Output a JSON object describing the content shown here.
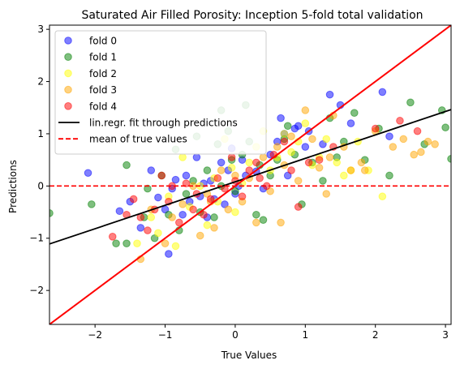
{
  "chart_data": {
    "type": "scatter",
    "title": "Saturated Air Filled Porosity: Inception 5-fold total validation",
    "xlabel": "True Values",
    "ylabel": "Predictions",
    "xlim": [
      -2.65,
      3.08
    ],
    "ylim": [
      -2.65,
      3.08
    ],
    "xticks": [
      -2,
      -1,
      0,
      1,
      2,
      3
    ],
    "yticks": [
      -2,
      -1,
      0,
      1,
      2,
      3
    ],
    "tick_labels": [
      "−2",
      "−1",
      "0",
      "1",
      "2",
      "3"
    ],
    "grid": false,
    "legend_placement": "top-left",
    "series": [
      {
        "name": "fold 0",
        "color": "#0000ff",
        "points": [
          [
            -2.1,
            0.25
          ],
          [
            -1.65,
            -0.48
          ],
          [
            -1.5,
            -0.3
          ],
          [
            -1.35,
            -0.8
          ],
          [
            -1.2,
            0.3
          ],
          [
            -1.1,
            -0.22
          ],
          [
            -1.0,
            -0.45
          ],
          [
            -0.95,
            -1.3
          ],
          [
            -0.9,
            -0.05
          ],
          [
            -0.85,
            0.12
          ],
          [
            -0.75,
            -0.55
          ],
          [
            -0.7,
            0.2
          ],
          [
            -0.65,
            -0.3
          ],
          [
            -0.55,
            0.55
          ],
          [
            -0.5,
            -0.2
          ],
          [
            -0.45,
            0.05
          ],
          [
            -0.4,
            -0.6
          ],
          [
            -0.35,
            0.1
          ],
          [
            -0.3,
            -0.25
          ],
          [
            -0.2,
            0.45
          ],
          [
            -0.15,
            -0.35
          ],
          [
            -0.1,
            0.3
          ],
          [
            -0.05,
            0.72
          ],
          [
            0.0,
            -0.15
          ],
          [
            0.05,
            0.0
          ],
          [
            0.1,
            0.5
          ],
          [
            0.15,
            0.2
          ],
          [
            0.3,
            0.28
          ],
          [
            0.4,
            -0.05
          ],
          [
            0.5,
            0.6
          ],
          [
            0.6,
            0.85
          ],
          [
            0.65,
            1.3
          ],
          [
            0.7,
            1.0
          ],
          [
            0.75,
            0.2
          ],
          [
            0.85,
            1.1
          ],
          [
            0.9,
            1.15
          ],
          [
            1.0,
            0.75
          ],
          [
            1.05,
            1.05
          ],
          [
            1.25,
            0.8
          ],
          [
            1.35,
            1.75
          ],
          [
            1.5,
            1.55
          ],
          [
            1.65,
            1.2
          ],
          [
            2.1,
            1.8
          ],
          [
            2.2,
            0.95
          ]
        ]
      },
      {
        "name": "fold 1",
        "color": "#008000",
        "points": [
          [
            -2.65,
            -0.52
          ],
          [
            -2.05,
            -0.35
          ],
          [
            -1.7,
            -1.1
          ],
          [
            -1.55,
            0.4
          ],
          [
            -1.55,
            -1.1
          ],
          [
            -1.25,
            -0.05
          ],
          [
            -1.15,
            -1.0
          ],
          [
            -1.05,
            0.2
          ],
          [
            -0.95,
            -0.55
          ],
          [
            -0.85,
            0.7
          ],
          [
            -0.8,
            -0.85
          ],
          [
            -0.7,
            -0.15
          ],
          [
            -0.6,
            0.1
          ],
          [
            -0.55,
            0.95
          ],
          [
            -0.5,
            -0.5
          ],
          [
            -0.4,
            0.3
          ],
          [
            -0.3,
            -0.6
          ],
          [
            -0.25,
            0.8
          ],
          [
            -0.2,
            0.0
          ],
          [
            -0.1,
            1.05
          ],
          [
            -0.05,
            0.5
          ],
          [
            0.0,
            -0.1
          ],
          [
            0.1,
            0.6
          ],
          [
            0.15,
            1.55
          ],
          [
            0.2,
            0.85
          ],
          [
            0.3,
            -0.55
          ],
          [
            0.4,
            -0.65
          ],
          [
            0.5,
            0.2
          ],
          [
            0.6,
            0.5
          ],
          [
            0.7,
            0.9
          ],
          [
            0.75,
            1.15
          ],
          [
            0.85,
            0.6
          ],
          [
            0.95,
            -0.35
          ],
          [
            1.1,
            0.45
          ],
          [
            1.25,
            0.1
          ],
          [
            1.35,
            1.3
          ],
          [
            1.45,
            0.55
          ],
          [
            1.55,
            0.85
          ],
          [
            1.7,
            1.4
          ],
          [
            1.85,
            0.5
          ],
          [
            2.05,
            1.1
          ],
          [
            2.2,
            0.2
          ],
          [
            2.5,
            1.6
          ],
          [
            2.7,
            0.8
          ],
          [
            2.95,
            1.45
          ],
          [
            3.0,
            1.12
          ],
          [
            3.08,
            0.52
          ],
          [
            -0.2,
            1.45
          ],
          [
            0.35,
            0.4
          ],
          [
            -1.3,
            -0.6
          ]
        ]
      },
      {
        "name": "fold 2",
        "color": "#ffff00",
        "points": [
          [
            -1.4,
            -1.1
          ],
          [
            -1.2,
            -0.6
          ],
          [
            -1.1,
            -0.9
          ],
          [
            -0.95,
            -0.2
          ],
          [
            -0.85,
            -1.15
          ],
          [
            -0.75,
            0.55
          ],
          [
            -0.65,
            -0.4
          ],
          [
            -0.5,
            0.0
          ],
          [
            -0.4,
            -0.75
          ],
          [
            -0.3,
            0.15
          ],
          [
            -0.25,
            -0.3
          ],
          [
            -0.15,
            0.9
          ],
          [
            -0.05,
            0.35
          ],
          [
            0.0,
            -0.5
          ],
          [
            0.1,
            0.05
          ],
          [
            0.2,
            0.45
          ],
          [
            0.3,
            0.75
          ],
          [
            0.4,
            1.05
          ],
          [
            0.5,
            0.3
          ],
          [
            0.6,
            0.55
          ],
          [
            0.7,
            1.0
          ],
          [
            0.8,
            0.65
          ],
          [
            0.9,
            0.85
          ],
          [
            1.0,
            1.2
          ],
          [
            1.1,
            0.4
          ],
          [
            1.2,
            0.55
          ],
          [
            1.3,
            0.9
          ],
          [
            1.45,
            0.45
          ],
          [
            1.55,
            0.2
          ],
          [
            1.65,
            0.3
          ],
          [
            1.75,
            0.85
          ],
          [
            1.9,
            0.3
          ],
          [
            2.1,
            -0.2
          ]
        ]
      },
      {
        "name": "fold 3",
        "color": "#ffa500",
        "points": [
          [
            -1.35,
            -1.4
          ],
          [
            -1.2,
            -0.45
          ],
          [
            -1.0,
            -1.1
          ],
          [
            -0.9,
            -0.6
          ],
          [
            -0.75,
            -0.35
          ],
          [
            -0.6,
            0.0
          ],
          [
            -0.5,
            -0.95
          ],
          [
            -0.4,
            -0.15
          ],
          [
            -0.3,
            -0.8
          ],
          [
            -0.2,
            0.3
          ],
          [
            -0.1,
            -0.45
          ],
          [
            0.0,
            0.2
          ],
          [
            0.1,
            -0.3
          ],
          [
            0.2,
            0.15
          ],
          [
            0.3,
            -0.7
          ],
          [
            0.4,
            0.55
          ],
          [
            0.5,
            -0.1
          ],
          [
            0.6,
            0.75
          ],
          [
            0.65,
            -0.7
          ],
          [
            0.7,
            0.4
          ],
          [
            0.8,
            0.95
          ],
          [
            0.9,
            0.1
          ],
          [
            1.0,
            1.45
          ],
          [
            1.1,
            0.9
          ],
          [
            1.2,
            0.35
          ],
          [
            1.3,
            -0.15
          ],
          [
            1.35,
            0.55
          ],
          [
            1.4,
            1.35
          ],
          [
            1.55,
            0.75
          ],
          [
            1.65,
            0.3
          ],
          [
            1.8,
            0.45
          ],
          [
            1.85,
            0.3
          ],
          [
            2.0,
            1.05
          ],
          [
            2.25,
            0.75
          ],
          [
            2.4,
            0.9
          ],
          [
            2.55,
            0.6
          ],
          [
            2.65,
            0.65
          ],
          [
            2.75,
            0.85
          ],
          [
            2.85,
            0.8
          ],
          [
            -0.35,
            -0.3
          ]
        ]
      },
      {
        "name": "fold 4",
        "color": "#ff0000",
        "points": [
          [
            -1.75,
            -0.97
          ],
          [
            -1.55,
            -0.55
          ],
          [
            -1.45,
            -0.25
          ],
          [
            -1.35,
            -0.6
          ],
          [
            -1.25,
            -0.85
          ],
          [
            -1.15,
            -0.45
          ],
          [
            -1.05,
            0.2
          ],
          [
            -0.95,
            -0.3
          ],
          [
            -0.9,
            0.0
          ],
          [
            -0.8,
            -0.7
          ],
          [
            -0.7,
            0.05
          ],
          [
            -0.6,
            -0.45
          ],
          [
            -0.55,
            -0.15
          ],
          [
            -0.45,
            -0.55
          ],
          [
            -0.35,
            -0.25
          ],
          [
            -0.25,
            0.15
          ],
          [
            -0.15,
            -0.05
          ],
          [
            -0.05,
            0.55
          ],
          [
            0.0,
            0.1
          ],
          [
            0.1,
            -0.2
          ],
          [
            0.2,
            0.3
          ],
          [
            0.3,
            0.45
          ],
          [
            0.35,
            0.15
          ],
          [
            0.45,
            0.0
          ],
          [
            0.55,
            0.6
          ],
          [
            0.7,
            0.85
          ],
          [
            0.8,
            0.3
          ],
          [
            0.9,
            -0.4
          ],
          [
            1.05,
            0.45
          ],
          [
            1.2,
            0.5
          ],
          [
            1.4,
            0.75
          ],
          [
            2.0,
            1.1
          ],
          [
            2.35,
            1.25
          ],
          [
            2.6,
            1.05
          ]
        ]
      }
    ],
    "fit_line": {
      "name": "lin.regr. fit through predictions",
      "color": "#000000",
      "slope": 0.449,
      "intercept": 0.08
    },
    "identity_line": {
      "color": "#ff0000",
      "slope": 1,
      "intercept": 0
    },
    "mean_line": {
      "name": "mean of true values",
      "color": "#ff0000",
      "y": 0.0
    }
  }
}
